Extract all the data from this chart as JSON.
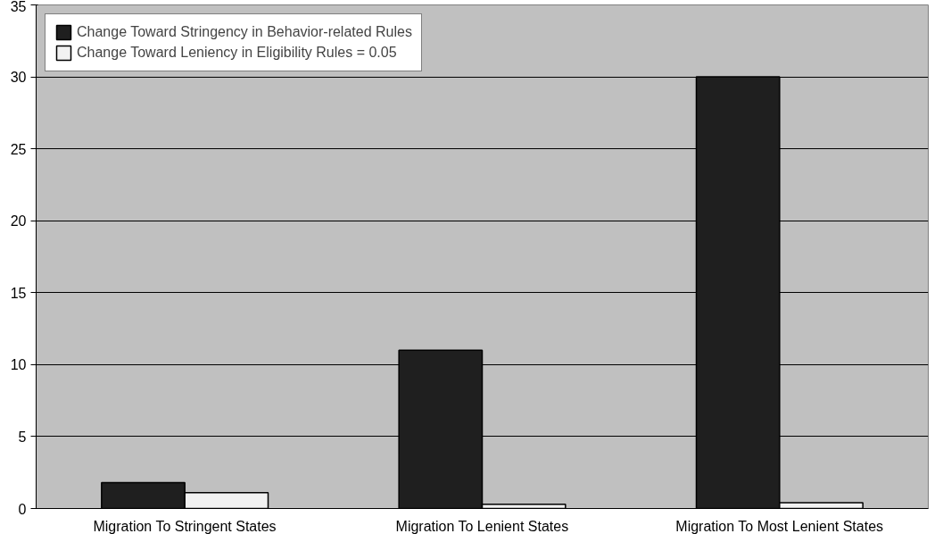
{
  "chart_data": {
    "type": "bar",
    "categories": [
      "Migration To Stringent States",
      "Migration To Lenient States",
      "Migration To Most Lenient States"
    ],
    "series": [
      {
        "name": "Change Toward Stringency in Behavior-related Rules",
        "color": "#1f1f1f",
        "values": [
          1.8,
          11,
          30
        ]
      },
      {
        "name": "Change Toward Leniency in Eligibility Rules = 0.05",
        "color": "#f2f2f2",
        "values": [
          1.1,
          0.3,
          0.4
        ]
      }
    ],
    "ylim": [
      0,
      35
    ],
    "yticks": [
      0,
      5,
      10,
      15,
      20,
      25,
      30,
      35
    ],
    "grid": "y",
    "legend": "top left"
  }
}
